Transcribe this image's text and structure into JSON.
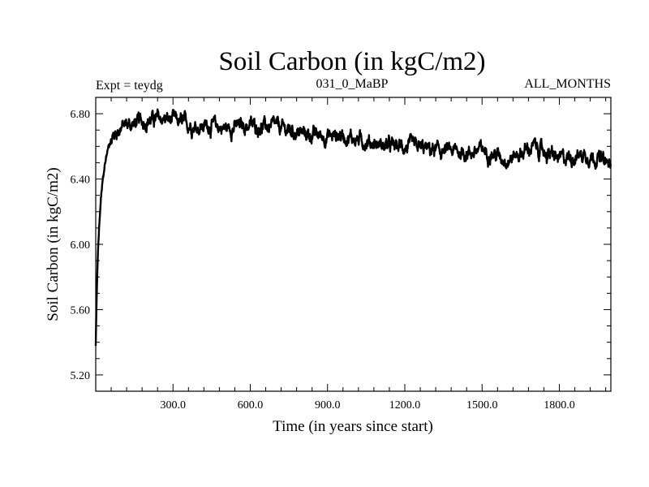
{
  "chart_data": {
    "type": "line",
    "title": "Soil Carbon (in kgC/m2)",
    "header_left": "Expt = teydg",
    "header_center": "031_0_MaBP",
    "header_right": "ALL_MONTHS",
    "xlabel": "Time (in years since start)",
    "ylabel": "Soil Carbon (in kgC/m2)",
    "xlim": [
      0,
      2000
    ],
    "ylim": [
      5.1,
      6.9
    ],
    "x_ticks": [
      300,
      600,
      900,
      1200,
      1500,
      1800
    ],
    "x_tick_labels": [
      "300.0",
      "600.0",
      "900.0",
      "1200.0",
      "1500.0",
      "1800.0"
    ],
    "y_ticks": [
      5.2,
      5.6,
      6.0,
      6.4,
      6.8
    ],
    "y_tick_labels": [
      "5.20",
      "5.60",
      "6.00",
      "6.40",
      "6.80"
    ],
    "grid": false,
    "legend": "none",
    "line_color": "#000000",
    "series": [
      {
        "x": [
          0,
          3,
          6,
          10,
          15,
          20,
          25,
          30,
          40,
          50,
          60,
          70,
          80,
          100,
          120,
          150,
          200,
          250,
          300,
          350,
          400,
          450,
          500,
          550,
          600,
          650,
          700,
          750,
          800,
          850,
          900,
          950,
          1000,
          1050,
          1100,
          1150,
          1200,
          1250,
          1300,
          1350,
          1400,
          1450,
          1500,
          1550,
          1600,
          1650,
          1700,
          1750,
          1800,
          1850,
          1900,
          1950,
          2000
        ],
        "values": [
          5.38,
          5.62,
          5.82,
          6.0,
          6.15,
          6.27,
          6.36,
          6.43,
          6.53,
          6.6,
          6.64,
          6.67,
          6.69,
          6.72,
          6.73,
          6.74,
          6.76,
          6.77,
          6.76,
          6.74,
          6.72,
          6.73,
          6.71,
          6.72,
          6.73,
          6.72,
          6.72,
          6.7,
          6.68,
          6.67,
          6.66,
          6.67,
          6.65,
          6.63,
          6.61,
          6.6,
          6.6,
          6.59,
          6.58,
          6.57,
          6.57,
          6.56,
          6.58,
          6.55,
          6.52,
          6.56,
          6.6,
          6.56,
          6.52,
          6.54,
          6.55,
          6.53,
          6.48
        ]
      }
    ]
  }
}
